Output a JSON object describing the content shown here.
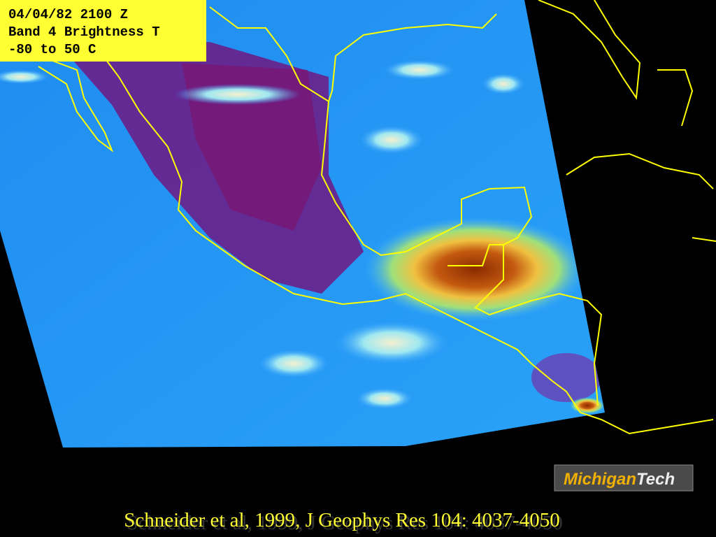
{
  "label": {
    "lines": [
      "04/04/82 2100 Z",
      "Band 4 Brightness T",
      "-80 to 50 C"
    ]
  },
  "logo": {
    "part1": "Michigan",
    "part2": "Tech"
  },
  "citation": "Schneider et al, 1999, J Geophys Res 104: 4037-4050"
}
